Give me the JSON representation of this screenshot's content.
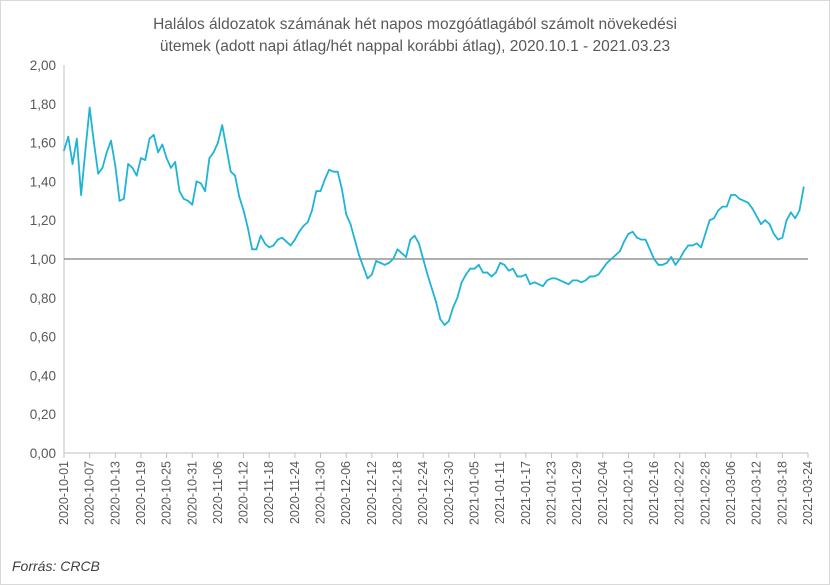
{
  "chart_data": {
    "type": "line",
    "title": [
      "Halálos áldozatok számának hét napos mozgóátlagából számolt növekedési",
      "ütemek (adott napi átlag/hét nappal korábbi átlag), 2020.10.1 - 2021.03.23"
    ],
    "source": "Forrás: CRCB",
    "x_start": "2020-10-01",
    "x_end": "2021-03-24",
    "ylim": [
      0,
      2
    ],
    "y_ticks": [
      "0,00",
      "0,20",
      "0,40",
      "0,60",
      "0,80",
      "1,00",
      "1,20",
      "1,40",
      "1,60",
      "1,80",
      "2,00"
    ],
    "y_tick_values": [
      0,
      0.2,
      0.4,
      0.6,
      0.8,
      1.0,
      1.2,
      1.4,
      1.6,
      1.8,
      2.0
    ],
    "x_tick_labels": [
      "2020-10-01",
      "2020-10-07",
      "2020-10-13",
      "2020-10-19",
      "2020-10-25",
      "2020-10-31",
      "2020-11-06",
      "2020-11-12",
      "2020-11-18",
      "2020-11-24",
      "2020-11-30",
      "2020-12-06",
      "2020-12-12",
      "2020-12-18",
      "2020-12-24",
      "2020-12-30",
      "2021-01-05",
      "2021-01-11",
      "2021-01-17",
      "2021-01-23",
      "2021-01-29",
      "2021-02-04",
      "2021-02-10",
      "2021-02-16",
      "2021-02-22",
      "2021-02-28",
      "2021-03-06",
      "2021-03-12",
      "2021-03-18",
      "2021-03-24"
    ],
    "reference_line": 1.0,
    "grid": false,
    "line_color": "#1fb4d6",
    "reference_color": "#7f7f7f",
    "series": [
      {
        "values": [
          1.56,
          1.63,
          1.49,
          1.62,
          1.33,
          1.56,
          1.78,
          1.6,
          1.44,
          1.47,
          1.55,
          1.61,
          1.48,
          1.3,
          1.31,
          1.49,
          1.47,
          1.43,
          1.52,
          1.51,
          1.62,
          1.64,
          1.55,
          1.59,
          1.52,
          1.47,
          1.5,
          1.35,
          1.31,
          1.3,
          1.28,
          1.4,
          1.39,
          1.35,
          1.52,
          1.55,
          1.6,
          1.69,
          1.57,
          1.45,
          1.43,
          1.32,
          1.25,
          1.16,
          1.05,
          1.05,
          1.12,
          1.08,
          1.06,
          1.07,
          1.1,
          1.11,
          1.09,
          1.07,
          1.1,
          1.14,
          1.17,
          1.19,
          1.25,
          1.35,
          1.35,
          1.41,
          1.46,
          1.45,
          1.45,
          1.36,
          1.23,
          1.18,
          1.1,
          1.02,
          0.96,
          0.9,
          0.92,
          0.99,
          0.98,
          0.97,
          0.98,
          1.0,
          1.05,
          1.03,
          1.01,
          1.1,
          1.12,
          1.08,
          1.0,
          0.92,
          0.85,
          0.78,
          0.69,
          0.66,
          0.68,
          0.75,
          0.8,
          0.88,
          0.92,
          0.95,
          0.95,
          0.97,
          0.93,
          0.93,
          0.91,
          0.93,
          0.98,
          0.97,
          0.94,
          0.95,
          0.91,
          0.91,
          0.92,
          0.87,
          0.88,
          0.87,
          0.86,
          0.89,
          0.9,
          0.9,
          0.89,
          0.88,
          0.87,
          0.89,
          0.89,
          0.88,
          0.89,
          0.91,
          0.91,
          0.92,
          0.95,
          0.98,
          1.0,
          1.02,
          1.04,
          1.09,
          1.13,
          1.14,
          1.11,
          1.1,
          1.1,
          1.05,
          1.0,
          0.97,
          0.97,
          0.98,
          1.01,
          0.97,
          1.0,
          1.04,
          1.07,
          1.07,
          1.08,
          1.06,
          1.13,
          1.2,
          1.21,
          1.25,
          1.27,
          1.27,
          1.33,
          1.33,
          1.31,
          1.3,
          1.29,
          1.26,
          1.22,
          1.18,
          1.2,
          1.18,
          1.13,
          1.1,
          1.11,
          1.2,
          1.24,
          1.21,
          1.25,
          1.37
        ]
      }
    ]
  }
}
